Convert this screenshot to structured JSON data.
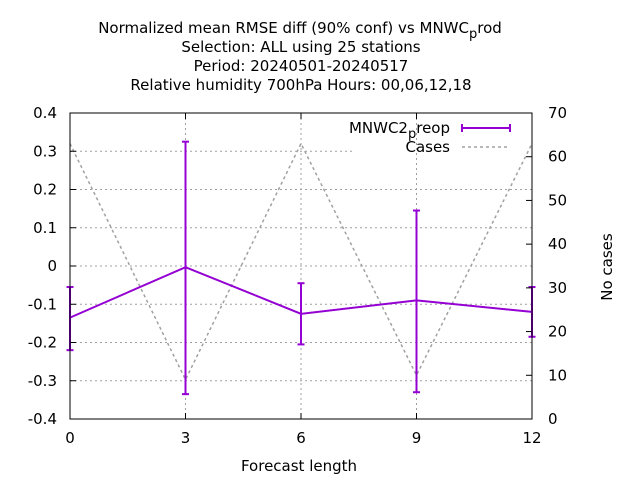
{
  "title_lines": [
    "Normalized mean RMSE diff (90% conf) vs MNWC",
    "Selection: ALL using    25 stations",
    "Period: 20240501-20240517",
    "Relative humidity 700hPa   Hours:  00,06,12,18"
  ],
  "title_sub": {
    "base": "p",
    "tail": "rod"
  },
  "xlabel": "Forecast length",
  "y2label": "No cases",
  "legend": {
    "series1": {
      "base": "MNWC2",
      "sub": "p",
      "tail": "reop"
    },
    "series2": "Cases"
  },
  "colors": {
    "series1": "#9400d3",
    "series2": "#a0a0a0",
    "grid": "#a0a0a0"
  },
  "chart_data": {
    "type": "line",
    "x": [
      0,
      3,
      6,
      9,
      12
    ],
    "xlim": [
      0,
      12
    ],
    "xticks": [
      0,
      3,
      6,
      9,
      12
    ],
    "ylim": [
      -0.4,
      0.4
    ],
    "yticks": [
      -0.4,
      -0.3,
      -0.2,
      -0.1,
      0,
      0.1,
      0.2,
      0.3,
      0.4
    ],
    "y2lim": [
      0,
      70
    ],
    "y2ticks": [
      0,
      10,
      20,
      30,
      40,
      50,
      60,
      70
    ],
    "grid": true,
    "legend_position": "top-right",
    "series": [
      {
        "name": "MNWC2_preop",
        "axis": "y1",
        "values": [
          -0.135,
          -0.003,
          -0.125,
          -0.09,
          -0.12
        ],
        "err_low": [
          -0.22,
          -0.335,
          -0.205,
          -0.33,
          -0.185
        ],
        "err_high": [
          -0.055,
          0.325,
          -0.045,
          0.145,
          -0.055
        ]
      },
      {
        "name": "Cases",
        "axis": "y2",
        "values": [
          63,
          9,
          63,
          10,
          63
        ]
      }
    ]
  }
}
